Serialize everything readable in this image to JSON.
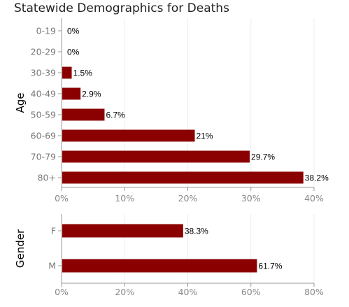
{
  "title": "Statewide Demographics for Deaths",
  "colors": {
    "bar": "#8b0000",
    "grid": "#eeeeee",
    "axis": "#999999"
  },
  "chart_data": [
    {
      "type": "bar",
      "orientation": "horizontal",
      "ylabel": "Age",
      "categories": [
        "0-19",
        "20-29",
        "30-39",
        "40-49",
        "50-59",
        "60-69",
        "70-79",
        "80+"
      ],
      "values": [
        0,
        0,
        1.5,
        2.9,
        6.7,
        21,
        29.7,
        38.2
      ],
      "value_labels": [
        "0%",
        "0%",
        "1.5%",
        "2.9%",
        "6.7%",
        "21%",
        "29.7%",
        "38.2%"
      ],
      "xlim": [
        0,
        40
      ],
      "xticks": [
        "0%",
        "10%",
        "20%",
        "30%",
        "40%"
      ],
      "grid": true
    },
    {
      "type": "bar",
      "orientation": "horizontal",
      "ylabel": "Gender",
      "categories": [
        "F",
        "M"
      ],
      "values": [
        38.3,
        61.7
      ],
      "value_labels": [
        "38.3%",
        "61.7%"
      ],
      "xlim": [
        0,
        80
      ],
      "xticks": [
        "0%",
        "20%",
        "40%",
        "60%",
        "80%"
      ],
      "grid": true
    }
  ]
}
